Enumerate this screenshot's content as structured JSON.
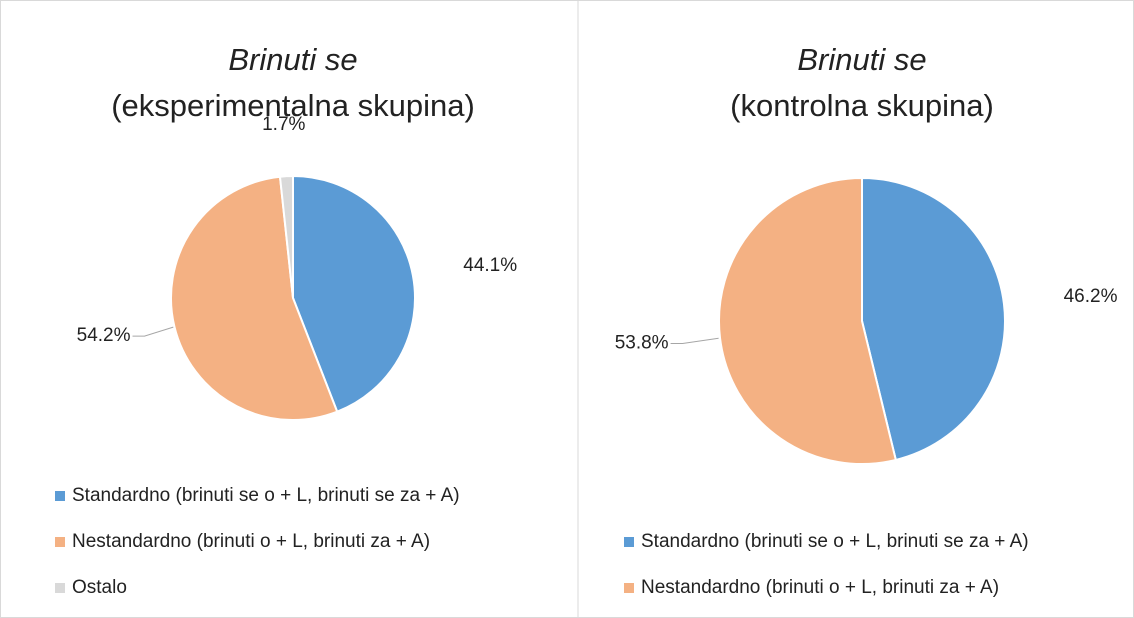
{
  "chart_data": [
    {
      "type": "pie",
      "title": "Brinuti se",
      "subtitle": "(eksperimentalna skupina)",
      "categories": [
        "Standardno (brinuti se o + L, brinuti se za + A)",
        "Nestandardno (brinuti o + L, brinuti za + A)",
        "Ostalo"
      ],
      "values": [
        44.1,
        54.2,
        1.7
      ],
      "value_labels": [
        "44.1%",
        "54.2%",
        "1.7%"
      ],
      "colors": [
        "#5b9bd5",
        "#f4b183",
        "#d9d9d9"
      ],
      "legend": "bottom"
    },
    {
      "type": "pie",
      "title": "Brinuti se",
      "subtitle": "(kontrolna skupina)",
      "categories": [
        "Standardno (brinuti se o + L, brinuti se za + A)",
        "Nestandardno (brinuti o + L, brinuti za + A)"
      ],
      "values": [
        46.2,
        53.8
      ],
      "value_labels": [
        "46.2%",
        "53.8%"
      ],
      "colors": [
        "#5b9bd5",
        "#f4b183"
      ],
      "legend": "bottom"
    }
  ]
}
